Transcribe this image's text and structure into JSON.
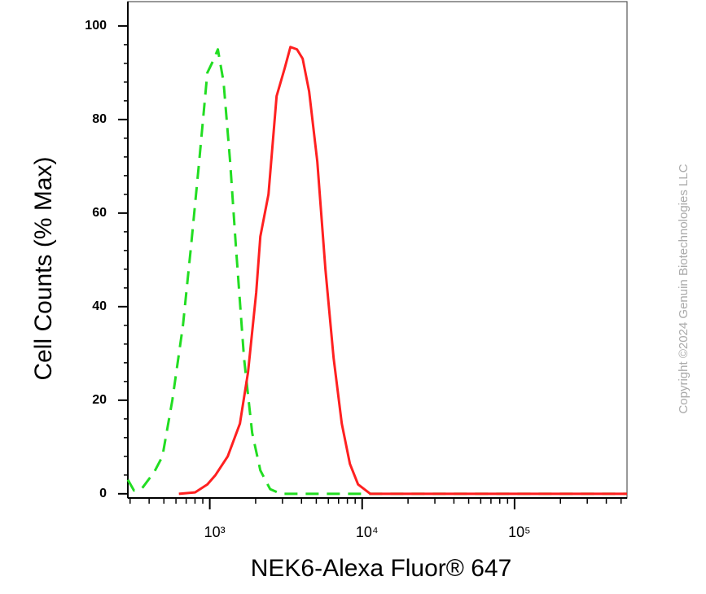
{
  "chart_data": {
    "type": "line",
    "x_label": "NEK6-Alexa Fluor® 647",
    "y_label": "Cell Counts (% Max)",
    "copyright": "Copyright ©2024 Genuin Biotechnologies LLC",
    "xscale": "log",
    "xlim": [
      290,
      547000
    ],
    "ylim": [
      -0.9,
      105.2
    ],
    "xticks": [
      {
        "value": 1000,
        "label": "10³"
      },
      {
        "value": 10000,
        "label": "10⁴"
      },
      {
        "value": 100000,
        "label": "10⁵"
      }
    ],
    "xminorticks": [
      300,
      400,
      500,
      600,
      700,
      800,
      900,
      2000,
      3000,
      4000,
      5000,
      6000,
      7000,
      8000,
      9000,
      20000,
      30000,
      40000,
      50000,
      60000,
      70000,
      80000,
      90000,
      200000,
      300000,
      400000,
      500000
    ],
    "yticks": [
      0,
      20,
      40,
      60,
      80,
      100
    ],
    "yminorticks": [
      4,
      8,
      12,
      16,
      24,
      28,
      32,
      36,
      44,
      48,
      52,
      56,
      64,
      68,
      72,
      76,
      84,
      88,
      92,
      96
    ],
    "series": [
      {
        "color": "#22dd22",
        "dashed": true,
        "x": [
          290,
          318,
          360,
          433,
          489,
          568,
          667,
          754,
          852,
          964,
          1050,
          1130,
          1232,
          1360,
          1483,
          1678,
          1898,
          2147,
          2489,
          2920,
          5740,
          19700,
          547000
        ],
        "values": [
          3,
          0.7,
          1.2,
          4.7,
          8,
          20,
          36,
          53,
          71,
          90,
          92.5,
          95,
          88,
          71,
          53,
          29,
          13,
          5,
          1,
          0,
          0,
          0,
          0
        ]
      },
      {
        "color": "#ff2020",
        "dashed": false,
        "x": [
          627,
          801,
          964,
          1090,
          1312,
          1577,
          1783,
          2017,
          2147,
          2428,
          2745,
          3105,
          3383,
          3733,
          4070,
          4488,
          5078,
          5740,
          6497,
          7349,
          8311,
          9400,
          11300,
          547000
        ],
        "values": [
          0,
          0.3,
          2,
          4,
          8,
          15,
          26,
          43,
          55,
          64,
          85,
          91,
          95.5,
          95,
          93,
          86,
          71,
          48,
          29,
          15,
          6.4,
          2,
          0,
          0
        ]
      }
    ]
  }
}
